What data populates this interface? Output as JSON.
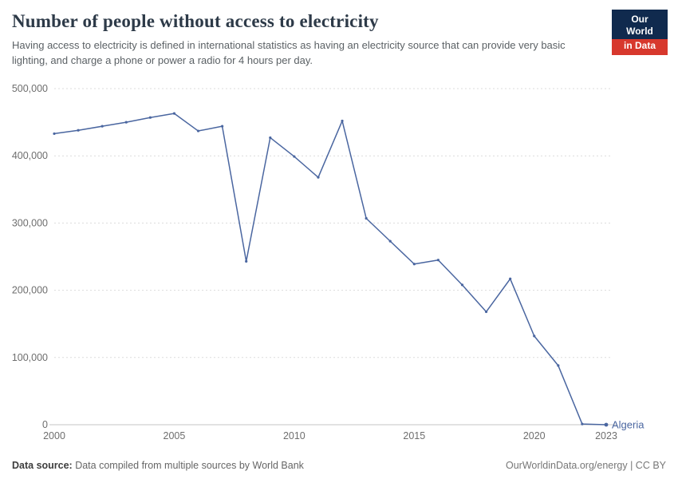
{
  "header": {
    "title": "Number of people without access to electricity",
    "subtitle": "Having access to electricity is defined in international statistics as having an electricity source that can provide very basic lighting, and charge a phone or power a radio for 4 hours per day.",
    "logo": {
      "line1": "Our World",
      "line2": "in Data"
    }
  },
  "chart_data": {
    "type": "line",
    "title": "Number of people without access to electricity",
    "entity": "Algeria",
    "x": [
      2000,
      2001,
      2002,
      2003,
      2004,
      2005,
      2006,
      2007,
      2008,
      2009,
      2010,
      2011,
      2012,
      2013,
      2014,
      2015,
      2016,
      2017,
      2018,
      2019,
      2020,
      2021,
      2022,
      2023
    ],
    "values": [
      433000,
      438000,
      444000,
      450000,
      457000,
      463000,
      437000,
      444000,
      243000,
      427000,
      399000,
      368000,
      452000,
      307000,
      273000,
      239000,
      245000,
      208000,
      168000,
      217000,
      132000,
      88000,
      1000,
      0
    ],
    "ylim": [
      0,
      500000
    ],
    "yticks": [
      0,
      100000,
      200000,
      300000,
      400000,
      500000
    ],
    "xticks": [
      2000,
      2005,
      2010,
      2015,
      2020,
      2023
    ],
    "line_color": "#4a66a0",
    "grid": "dashed",
    "legend_position": "end-of-line"
  },
  "footer": {
    "source_label": "Data source:",
    "source_text": " Data compiled from multiple sources by World Bank",
    "right_text": "OurWorldinData.org/energy | CC BY"
  }
}
